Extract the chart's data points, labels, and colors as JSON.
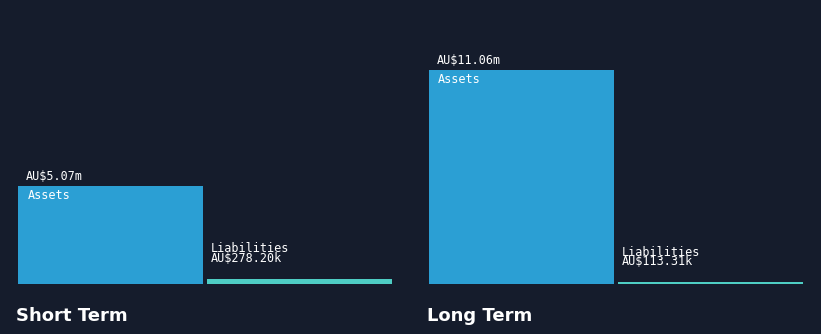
{
  "background_color": "#151c2c",
  "sections": [
    "Short Term",
    "Long Term"
  ],
  "assets": [
    5.07,
    11.06
  ],
  "liabilities": [
    0.2782,
    0.11331
  ],
  "assets_label": "Assets",
  "liabilities_label": "Liabilities",
  "asset_value_labels": [
    "AU$5.07m",
    "AU$11.06m"
  ],
  "liability_value_labels": [
    "AU$278.20k",
    "AU$113.31k"
  ],
  "bar_color_asset": "#2b9fd4",
  "bar_color_liability": "#4ecdc4",
  "text_color": "#ffffff",
  "section_label_fontsize": 13,
  "value_label_fontsize": 8.5,
  "bar_label_fontsize": 8.5,
  "max_val": 11.06,
  "ylim": [
    0,
    13.5
  ]
}
